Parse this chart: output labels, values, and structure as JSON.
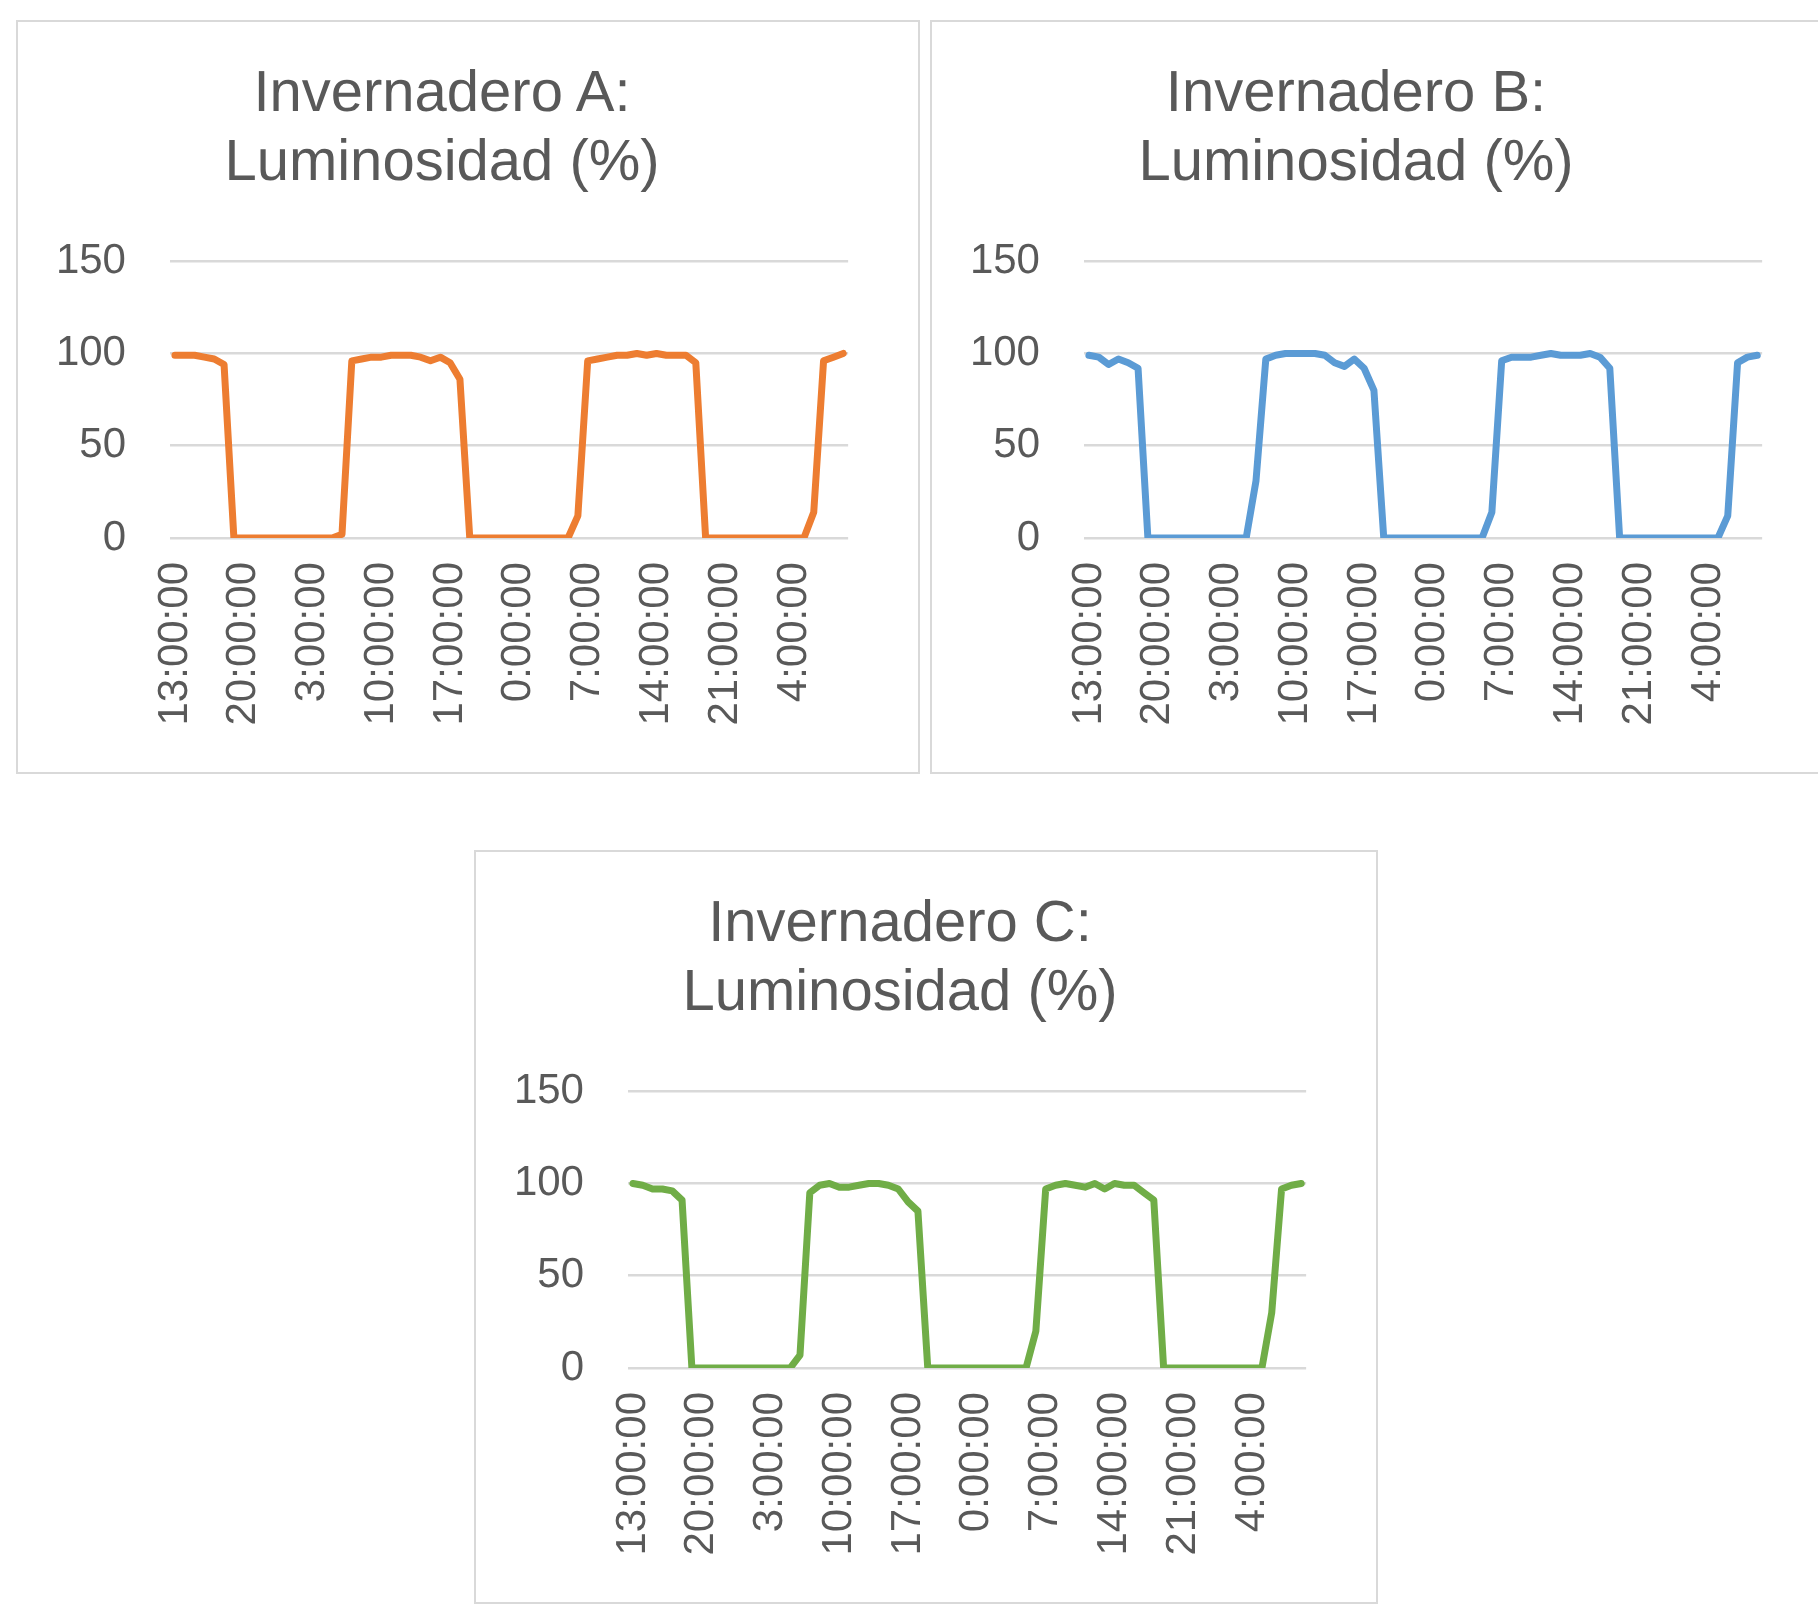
{
  "chart_data": [
    {
      "type": "line",
      "title": "Invernadero A: Luminosidad (%)",
      "categories": [
        "13:00:00",
        null,
        null,
        null,
        null,
        null,
        null,
        "20:00:00",
        null,
        null,
        null,
        null,
        null,
        null,
        "3:00:00",
        null,
        null,
        null,
        null,
        null,
        null,
        "10:00:00",
        null,
        null,
        null,
        null,
        null,
        null,
        "17:00:00",
        null,
        null,
        null,
        null,
        null,
        null,
        "0:00:00",
        null,
        null,
        null,
        null,
        null,
        null,
        "7:00:00",
        null,
        null,
        null,
        null,
        null,
        null,
        "14:00:00",
        null,
        null,
        null,
        null,
        null,
        null,
        "21:00:00",
        null,
        null,
        null,
        null,
        null,
        null,
        "4:00:00",
        null,
        null,
        null,
        null,
        null
      ],
      "series": [
        {
          "color": "#ed7d31",
          "values": [
            99,
            99,
            99,
            98,
            97,
            94,
            0,
            0,
            0,
            0,
            0,
            0,
            0,
            0,
            0,
            0,
            0,
            2,
            96,
            97,
            98,
            98,
            99,
            99,
            99,
            98,
            96,
            98,
            95,
            86,
            0,
            0,
            0,
            0,
            0,
            0,
            0,
            0,
            0,
            0,
            0,
            12,
            96,
            97,
            98,
            99,
            99,
            100,
            99,
            100,
            99,
            99,
            99,
            95,
            0,
            0,
            0,
            0,
            0,
            0,
            0,
            0,
            0,
            0,
            0,
            14,
            96,
            98,
            100
          ]
        }
      ],
      "ylim": [
        0,
        150
      ],
      "yticks": [
        0,
        50,
        100,
        150
      ],
      "grid": "y",
      "marker": "none",
      "line_style": "solid"
    },
    {
      "type": "line",
      "title": "Invernadero B: Luminosidad (%)",
      "categories": [
        "13:00:00",
        null,
        null,
        null,
        null,
        null,
        null,
        "20:00:00",
        null,
        null,
        null,
        null,
        null,
        null,
        "3:00:00",
        null,
        null,
        null,
        null,
        null,
        null,
        "10:00:00",
        null,
        null,
        null,
        null,
        null,
        null,
        "17:00:00",
        null,
        null,
        null,
        null,
        null,
        null,
        "0:00:00",
        null,
        null,
        null,
        null,
        null,
        null,
        "7:00:00",
        null,
        null,
        null,
        null,
        null,
        null,
        "14:00:00",
        null,
        null,
        null,
        null,
        null,
        null,
        "21:00:00",
        null,
        null,
        null,
        null,
        null,
        null,
        "4:00:00",
        null,
        null,
        null,
        null,
        null
      ],
      "series": [
        {
          "color": "#5b9bd5",
          "values": [
            99,
            98,
            94,
            97,
            95,
            92,
            0,
            0,
            0,
            0,
            0,
            0,
            0,
            0,
            0,
            0,
            0,
            31,
            97,
            99,
            100,
            100,
            100,
            100,
            99,
            95,
            93,
            97,
            92,
            80,
            0,
            0,
            0,
            0,
            0,
            0,
            0,
            0,
            0,
            0,
            0,
            14,
            96,
            98,
            98,
            98,
            99,
            100,
            99,
            99,
            99,
            100,
            98,
            92,
            0,
            0,
            0,
            0,
            0,
            0,
            0,
            0,
            0,
            0,
            0,
            12,
            95,
            98,
            99
          ]
        }
      ],
      "ylim": [
        0,
        150
      ],
      "yticks": [
        0,
        50,
        100,
        150
      ],
      "grid": "y",
      "marker": "none",
      "line_style": "solid"
    },
    {
      "type": "line",
      "title": "Invernadero C: Luminosidad (%)",
      "categories": [
        "13:00:00",
        null,
        null,
        null,
        null,
        null,
        null,
        "20:00:00",
        null,
        null,
        null,
        null,
        null,
        null,
        "3:00:00",
        null,
        null,
        null,
        null,
        null,
        null,
        "10:00:00",
        null,
        null,
        null,
        null,
        null,
        null,
        "17:00:00",
        null,
        null,
        null,
        null,
        null,
        null,
        "0:00:00",
        null,
        null,
        null,
        null,
        null,
        null,
        "7:00:00",
        null,
        null,
        null,
        null,
        null,
        null,
        "14:00:00",
        null,
        null,
        null,
        null,
        null,
        null,
        "21:00:00",
        null,
        null,
        null,
        null,
        null,
        null,
        "4:00:00",
        null,
        null,
        null,
        null,
        null
      ],
      "series": [
        {
          "color": "#70ad47",
          "values": [
            100,
            99,
            97,
            97,
            96,
            91,
            0,
            0,
            0,
            0,
            0,
            0,
            0,
            0,
            0,
            0,
            0,
            7,
            95,
            99,
            100,
            98,
            98,
            99,
            100,
            100,
            99,
            97,
            90,
            85,
            0,
            0,
            0,
            0,
            0,
            0,
            0,
            0,
            0,
            0,
            0,
            20,
            97,
            99,
            100,
            99,
            98,
            100,
            97,
            100,
            99,
            99,
            95,
            91,
            0,
            0,
            0,
            0,
            0,
            0,
            0,
            0,
            0,
            0,
            0,
            30,
            97,
            99,
            100
          ]
        }
      ],
      "ylim": [
        0,
        150
      ],
      "yticks": [
        0,
        50,
        100,
        150
      ],
      "grid": "y",
      "marker": "none",
      "line_style": "solid"
    }
  ]
}
